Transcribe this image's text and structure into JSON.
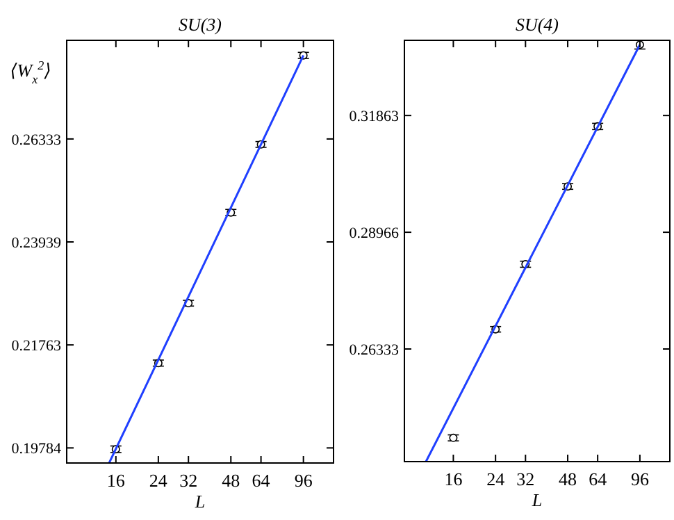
{
  "chart_data": [
    {
      "type": "scatter",
      "title": "SU(3)",
      "xlabel": "L",
      "ylabel": "⟨W$_{x}$$^{2}$⟩",
      "log": "xy",
      "xlim": [
        10,
        128
      ],
      "xticks": [
        16,
        24,
        32,
        48,
        64,
        96
      ],
      "ylim": [
        0.1951,
        0.2885
      ],
      "yticks": [
        0.19784,
        0.21763,
        0.23939,
        0.26333
      ],
      "series": [
        {
          "marker": "circle",
          "color": "#000000",
          "x": [
            16,
            24,
            32,
            48,
            64,
            96
          ],
          "values": [
            0.1976,
            0.214,
            0.2262,
            0.246,
            0.262,
            0.2845
          ],
          "errors": [
            0.0006,
            0.0006,
            0.0006,
            0.0007,
            0.0007,
            0.0008
          ]
        },
        {
          "type": "line",
          "color": "#1f3fff",
          "x": [
            15,
            96
          ],
          "values": [
            0.1951,
            0.2845
          ]
        }
      ]
    },
    {
      "type": "scatter",
      "title": "SU(4)",
      "xlabel": "L",
      "log": "xy",
      "xlim": [
        10,
        128
      ],
      "xticks": [
        16,
        24,
        32,
        48,
        64,
        96
      ],
      "ylim": [
        0.2402,
        0.3388
      ],
      "yticks": [
        0.26333,
        0.28966,
        0.31863
      ],
      "series": [
        {
          "marker": "circle",
          "color": "#000000",
          "x": [
            16,
            24,
            32,
            48,
            64,
            96
          ],
          "values": [
            0.2449,
            0.2676,
            0.2822,
            0.3007,
            0.3158,
            0.3376
          ],
          "errors": [
            0.0006,
            0.0006,
            0.0007,
            0.0007,
            0.0008,
            0.0012
          ]
        },
        {
          "type": "line",
          "color": "#1f3fff",
          "x": [
            12.3,
            96
          ],
          "values": [
            0.2402,
            0.3376
          ]
        }
      ]
    }
  ]
}
